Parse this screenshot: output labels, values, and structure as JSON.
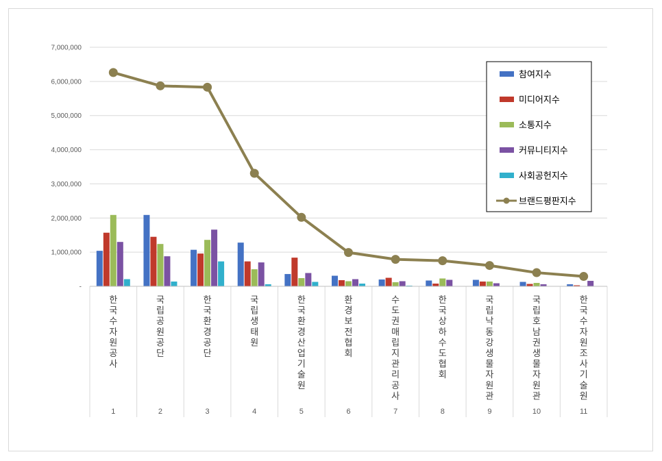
{
  "chart_data": {
    "type": "bar",
    "title": "",
    "xlabel": "",
    "ylabel": "",
    "ylim": [
      0,
      7000000
    ],
    "yticks": [
      "-",
      "1,000,000",
      "2,000,000",
      "3,000,000",
      "4,000,000",
      "5,000,000",
      "6,000,000",
      "7,000,000"
    ],
    "grid": true,
    "legend_position": "top-right",
    "categories": [
      {
        "rank": "1",
        "name": "한국수자원공사"
      },
      {
        "rank": "2",
        "name": "국립공원공단"
      },
      {
        "rank": "3",
        "name": "한국환경공단"
      },
      {
        "rank": "4",
        "name": "국립생태원"
      },
      {
        "rank": "5",
        "name": "한국환경산업기술원"
      },
      {
        "rank": "6",
        "name": "환경보전협회"
      },
      {
        "rank": "7",
        "name": "수도권매립지관리공사"
      },
      {
        "rank": "8",
        "name": "한국상하수도협회"
      },
      {
        "rank": "9",
        "name": "국립낙동강생물자원관"
      },
      {
        "rank": "10",
        "name": "국립호남권생물자원관"
      },
      {
        "rank": "11",
        "name": "한국수자원조사기술원"
      }
    ],
    "series": [
      {
        "name": "참여지수",
        "type": "bar",
        "color": "#4472c4",
        "values": [
          1040000,
          2090000,
          1070000,
          1280000,
          360000,
          310000,
          200000,
          170000,
          190000,
          130000,
          60000
        ]
      },
      {
        "name": "미디어지수",
        "type": "bar",
        "color": "#c0392b",
        "values": [
          1570000,
          1450000,
          960000,
          730000,
          840000,
          180000,
          250000,
          80000,
          140000,
          70000,
          30000
        ]
      },
      {
        "name": "소통지수",
        "type": "bar",
        "color": "#9bbb59",
        "values": [
          2090000,
          1240000,
          1360000,
          500000,
          240000,
          150000,
          120000,
          230000,
          140000,
          100000,
          10000
        ]
      },
      {
        "name": "커뮤니티지수",
        "type": "bar",
        "color": "#7b52a3",
        "values": [
          1300000,
          880000,
          1660000,
          700000,
          390000,
          210000,
          150000,
          190000,
          90000,
          60000,
          160000
        ]
      },
      {
        "name": "사회공헌지수",
        "type": "bar",
        "color": "#31b0cc",
        "values": [
          210000,
          140000,
          730000,
          60000,
          130000,
          80000,
          20000,
          0,
          0,
          0,
          0
        ]
      },
      {
        "name": "브랜드평판지수",
        "type": "line",
        "color": "#8c8050",
        "values": [
          6260000,
          5870000,
          5830000,
          3310000,
          2020000,
          990000,
          790000,
          750000,
          610000,
          400000,
          290000
        ]
      }
    ]
  }
}
